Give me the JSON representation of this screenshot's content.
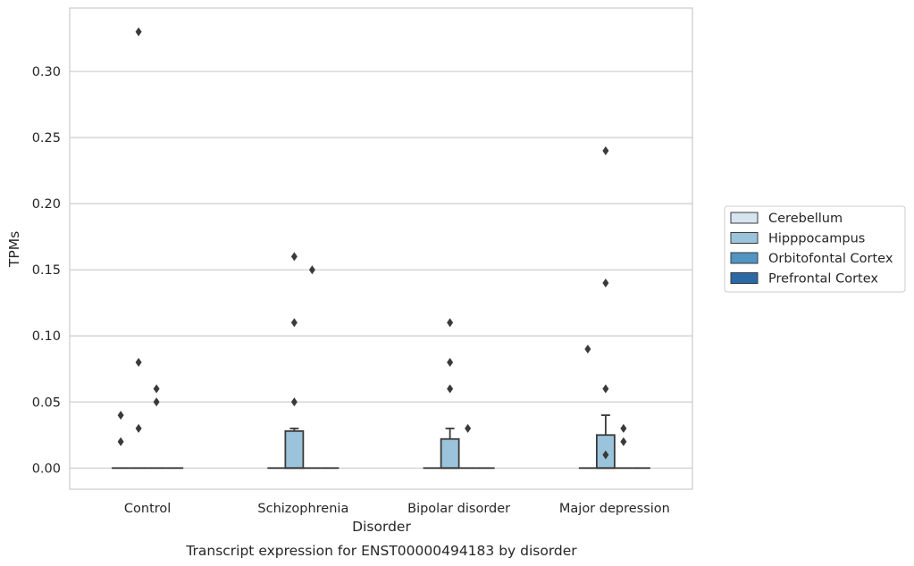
{
  "chart_data": {
    "type": "box",
    "title": "Transcript expression for ENST00000494183 by disorder",
    "xlabel": "Disorder",
    "ylabel": "TPMs",
    "ylim": [
      -0.016,
      0.348
    ],
    "yticks": [
      0.0,
      0.05,
      0.1,
      0.15,
      0.2,
      0.25,
      0.3
    ],
    "ytick_labels": [
      "0.00",
      "0.05",
      "0.10",
      "0.15",
      "0.20",
      "0.25",
      "0.30"
    ],
    "grid": true,
    "legend_position": "right",
    "categories": [
      "Control",
      "Schizophrenia",
      "Bipolar disorder",
      "Major depression"
    ],
    "series": [
      {
        "name": "Cerebellum",
        "color": "#d6e4f0",
        "boxes": [
          {
            "q1": 0,
            "median": 0,
            "q3": 0,
            "whisker_low": 0,
            "whisker_high": 0,
            "outliers": [
              0.02,
              0.04
            ]
          },
          {
            "q1": 0,
            "median": 0,
            "q3": 0,
            "whisker_low": 0,
            "whisker_high": 0,
            "outliers": []
          },
          {
            "q1": 0,
            "median": 0,
            "q3": 0,
            "whisker_low": 0,
            "whisker_high": 0,
            "outliers": []
          },
          {
            "q1": 0,
            "median": 0,
            "q3": 0,
            "whisker_low": 0,
            "whisker_high": 0,
            "outliers": [
              0.09
            ]
          }
        ]
      },
      {
        "name": "Hipppocampus",
        "color": "#9bc4dc",
        "boxes": [
          {
            "q1": 0,
            "median": 0,
            "q3": 0,
            "whisker_low": 0,
            "whisker_high": 0,
            "outliers": [
              0.03,
              0.08,
              0.33
            ]
          },
          {
            "q1": 0,
            "median": 0,
            "q3": 0.028,
            "whisker_low": 0,
            "whisker_high": 0.03,
            "outliers": [
              0.05,
              0.11,
              0.16
            ]
          },
          {
            "q1": 0,
            "median": 0,
            "q3": 0.022,
            "whisker_low": 0,
            "whisker_high": 0.03,
            "outliers": [
              0.06,
              0.08,
              0.11
            ]
          },
          {
            "q1": 0,
            "median": 0,
            "q3": 0.025,
            "whisker_low": 0,
            "whisker_high": 0.04,
            "outliers": [
              0.01,
              0.06,
              0.14,
              0.24
            ]
          }
        ]
      },
      {
        "name": "Orbitofontal Cortex",
        "color": "#5294c4",
        "boxes": [
          {
            "q1": 0,
            "median": 0,
            "q3": 0,
            "whisker_low": 0,
            "whisker_high": 0,
            "outliers": [
              0.05,
              0.06
            ]
          },
          {
            "q1": 0,
            "median": 0,
            "q3": 0,
            "whisker_low": 0,
            "whisker_high": 0,
            "outliers": [
              0.15
            ]
          },
          {
            "q1": 0,
            "median": 0,
            "q3": 0,
            "whisker_low": 0,
            "whisker_high": 0,
            "outliers": [
              0.03
            ]
          },
          {
            "q1": 0,
            "median": 0,
            "q3": 0,
            "whisker_low": 0,
            "whisker_high": 0,
            "outliers": [
              0.02,
              0.03
            ]
          }
        ]
      },
      {
        "name": "Prefrontal Cortex",
        "color": "#2a69a8",
        "boxes": [
          {
            "q1": 0,
            "median": 0,
            "q3": 0,
            "whisker_low": 0,
            "whisker_high": 0,
            "outliers": []
          },
          {
            "q1": 0,
            "median": 0,
            "q3": 0,
            "whisker_low": 0,
            "whisker_high": 0,
            "outliers": []
          },
          {
            "q1": 0,
            "median": 0,
            "q3": 0,
            "whisker_low": 0,
            "whisker_high": 0,
            "outliers": []
          },
          {
            "q1": 0,
            "median": 0,
            "q3": 0,
            "whisker_low": 0,
            "whisker_high": 0,
            "outliers": []
          }
        ]
      }
    ]
  }
}
